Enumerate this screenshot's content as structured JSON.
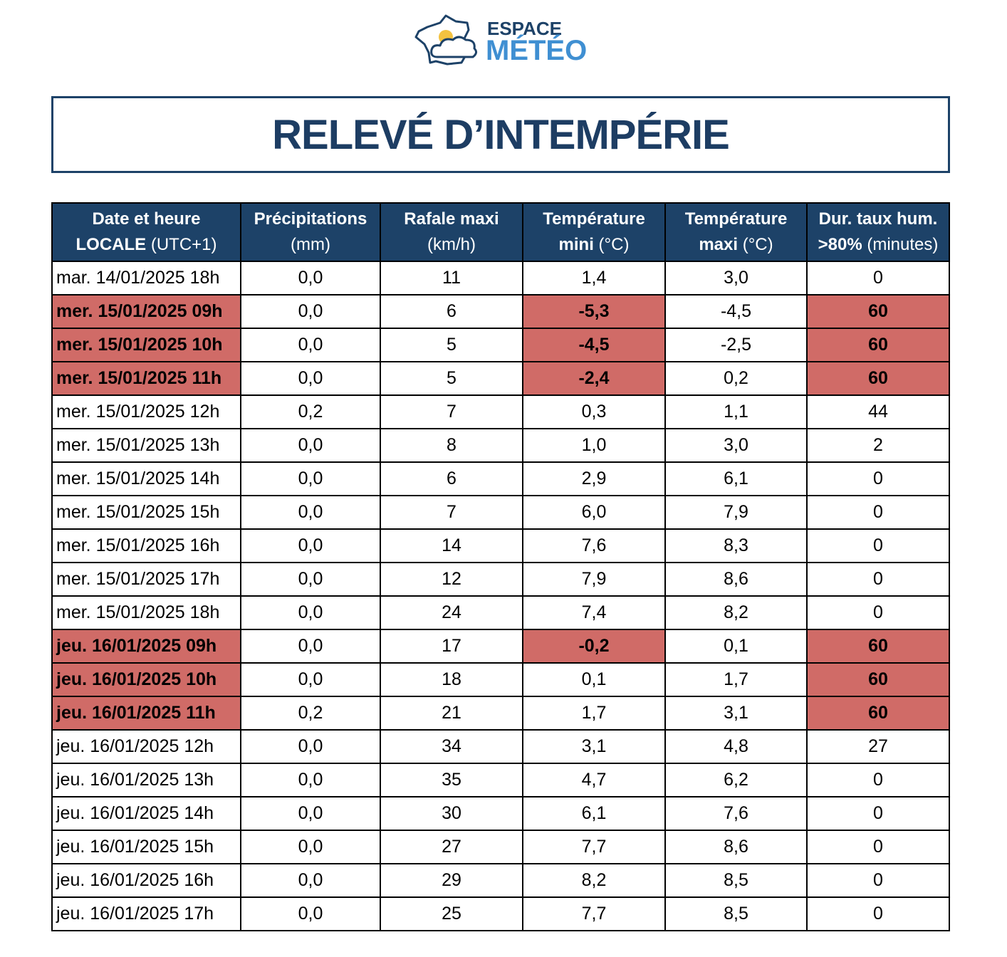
{
  "logo": {
    "line1": "ESPACE",
    "line2": "MÉTÉO"
  },
  "title": "RELEVÉ D’INTEMPÉRIE",
  "table": {
    "headers": [
      {
        "bold": "Date et heure LOCALE",
        "light": "(UTC+1)"
      },
      {
        "bold": "Précipitations",
        "light": "(mm)"
      },
      {
        "bold": "Rafale maxi",
        "light": "(km/h)"
      },
      {
        "bold": "Température mini",
        "light": "(°C)"
      },
      {
        "bold": "Température maxi",
        "light": "(°C)"
      },
      {
        "bold": "Dur. taux hum. >80%",
        "light": "(minutes)"
      }
    ],
    "rows": [
      {
        "cells": [
          "mar. 14/01/2025 18h",
          "0,0",
          "11",
          "1,4",
          "3,0",
          "0"
        ]
      },
      {
        "cells": [
          "mer. 15/01/2025 09h",
          "0,0",
          "6",
          "-5,3",
          "-4,5",
          "60"
        ],
        "alert": [
          0,
          3,
          5
        ]
      },
      {
        "cells": [
          "mer. 15/01/2025 10h",
          "0,0",
          "5",
          "-4,5",
          "-2,5",
          "60"
        ],
        "alert": [
          0,
          3,
          5
        ]
      },
      {
        "cells": [
          "mer. 15/01/2025 11h",
          "0,0",
          "5",
          "-2,4",
          "0,2",
          "60"
        ],
        "alert": [
          0,
          3,
          5
        ]
      },
      {
        "cells": [
          "mer. 15/01/2025 12h",
          "0,2",
          "7",
          "0,3",
          "1,1",
          "44"
        ]
      },
      {
        "cells": [
          "mer. 15/01/2025 13h",
          "0,0",
          "8",
          "1,0",
          "3,0",
          "2"
        ]
      },
      {
        "cells": [
          "mer. 15/01/2025 14h",
          "0,0",
          "6",
          "2,9",
          "6,1",
          "0"
        ]
      },
      {
        "cells": [
          "mer. 15/01/2025 15h",
          "0,0",
          "7",
          "6,0",
          "7,9",
          "0"
        ]
      },
      {
        "cells": [
          "mer. 15/01/2025 16h",
          "0,0",
          "14",
          "7,6",
          "8,3",
          "0"
        ]
      },
      {
        "cells": [
          "mer. 15/01/2025 17h",
          "0,0",
          "12",
          "7,9",
          "8,6",
          "0"
        ]
      },
      {
        "cells": [
          "mer. 15/01/2025 18h",
          "0,0",
          "24",
          "7,4",
          "8,2",
          "0"
        ]
      },
      {
        "cells": [
          "jeu. 16/01/2025 09h",
          "0,0",
          "17",
          "-0,2",
          "0,1",
          "60"
        ],
        "alert": [
          0,
          3,
          5
        ]
      },
      {
        "cells": [
          "jeu. 16/01/2025 10h",
          "0,0",
          "18",
          "0,1",
          "1,7",
          "60"
        ],
        "alert": [
          0,
          5
        ]
      },
      {
        "cells": [
          "jeu. 16/01/2025 11h",
          "0,2",
          "21",
          "1,7",
          "3,1",
          "60"
        ],
        "alert": [
          0,
          5
        ]
      },
      {
        "cells": [
          "jeu. 16/01/2025 12h",
          "0,0",
          "34",
          "3,1",
          "4,8",
          "27"
        ]
      },
      {
        "cells": [
          "jeu. 16/01/2025 13h",
          "0,0",
          "35",
          "4,7",
          "6,2",
          "0"
        ]
      },
      {
        "cells": [
          "jeu. 16/01/2025 14h",
          "0,0",
          "30",
          "6,1",
          "7,6",
          "0"
        ]
      },
      {
        "cells": [
          "jeu. 16/01/2025 15h",
          "0,0",
          "27",
          "7,7",
          "8,6",
          "0"
        ]
      },
      {
        "cells": [
          "jeu. 16/01/2025 16h",
          "0,0",
          "29",
          "8,2",
          "8,5",
          "0"
        ]
      },
      {
        "cells": [
          "jeu. 16/01/2025 17h",
          "0,0",
          "25",
          "7,7",
          "8,5",
          "0"
        ]
      }
    ]
  }
}
